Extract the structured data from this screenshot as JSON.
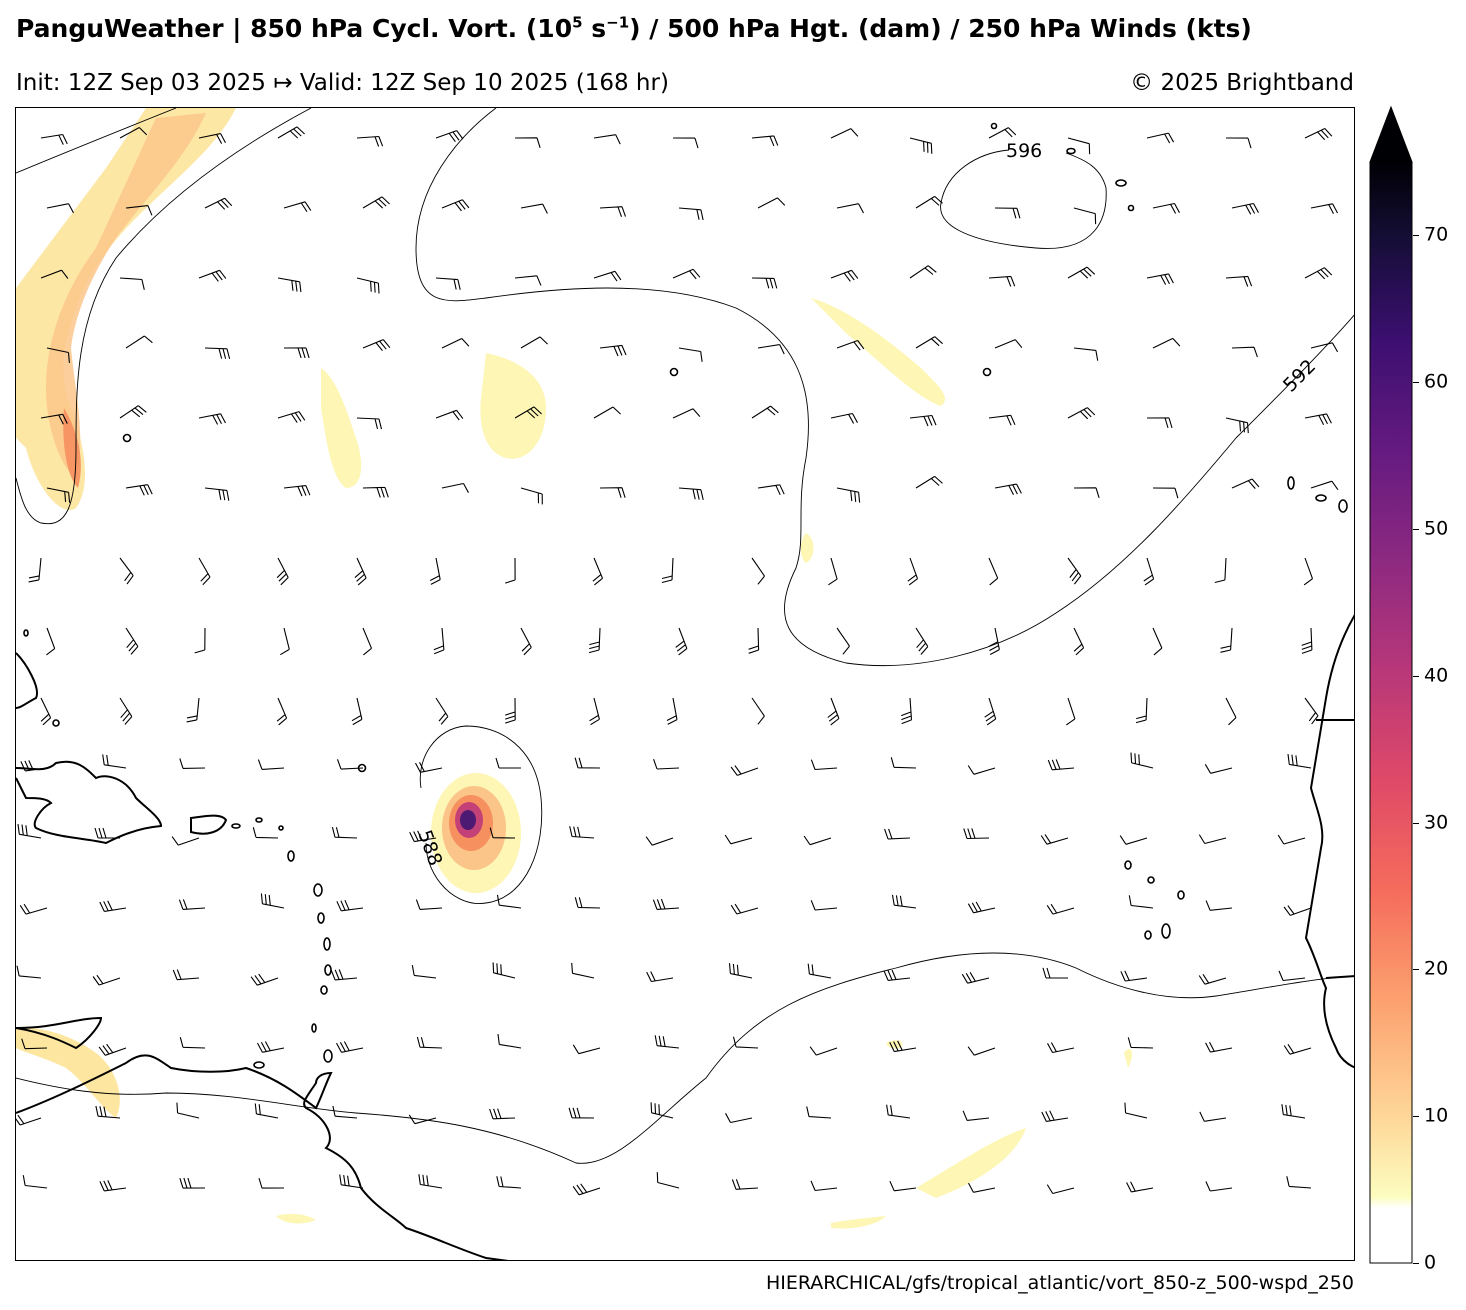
{
  "header": {
    "title_part1": "PanguWeather | 850 hPa Cycl. Vort. (10",
    "title_sup1": "5",
    "title_part2": " s",
    "title_sup2": "−1",
    "title_part3": ") / 500 hPa Hgt. (dam) / 250 hPa Winds (kts)",
    "subtitle": "Init: 12Z Sep 03 2025 ↦ Valid: 12Z Sep 10 2025 (168 hr)",
    "copyright": "© 2025 Brightband"
  },
  "footer": {
    "path": "HIERARCHICAL/gfs/tropical_atlantic/vort_850-z_500-wspd_250"
  },
  "map": {
    "region": "tropical_atlantic",
    "contour_labels": [
      "596",
      "592",
      "588"
    ],
    "colors": {
      "land_outline": "#000000",
      "contour": "#000000",
      "vorticity_low": "#fdf6b4",
      "vorticity_mid": "#f6905f",
      "vorticity_high": "#4d1a73"
    }
  },
  "colorbar": {
    "min": 0,
    "max": 75,
    "ticks": [
      "0",
      "10",
      "20",
      "30",
      "40",
      "50",
      "60",
      "70"
    ],
    "extend": "max",
    "colormap": "magma_r"
  }
}
